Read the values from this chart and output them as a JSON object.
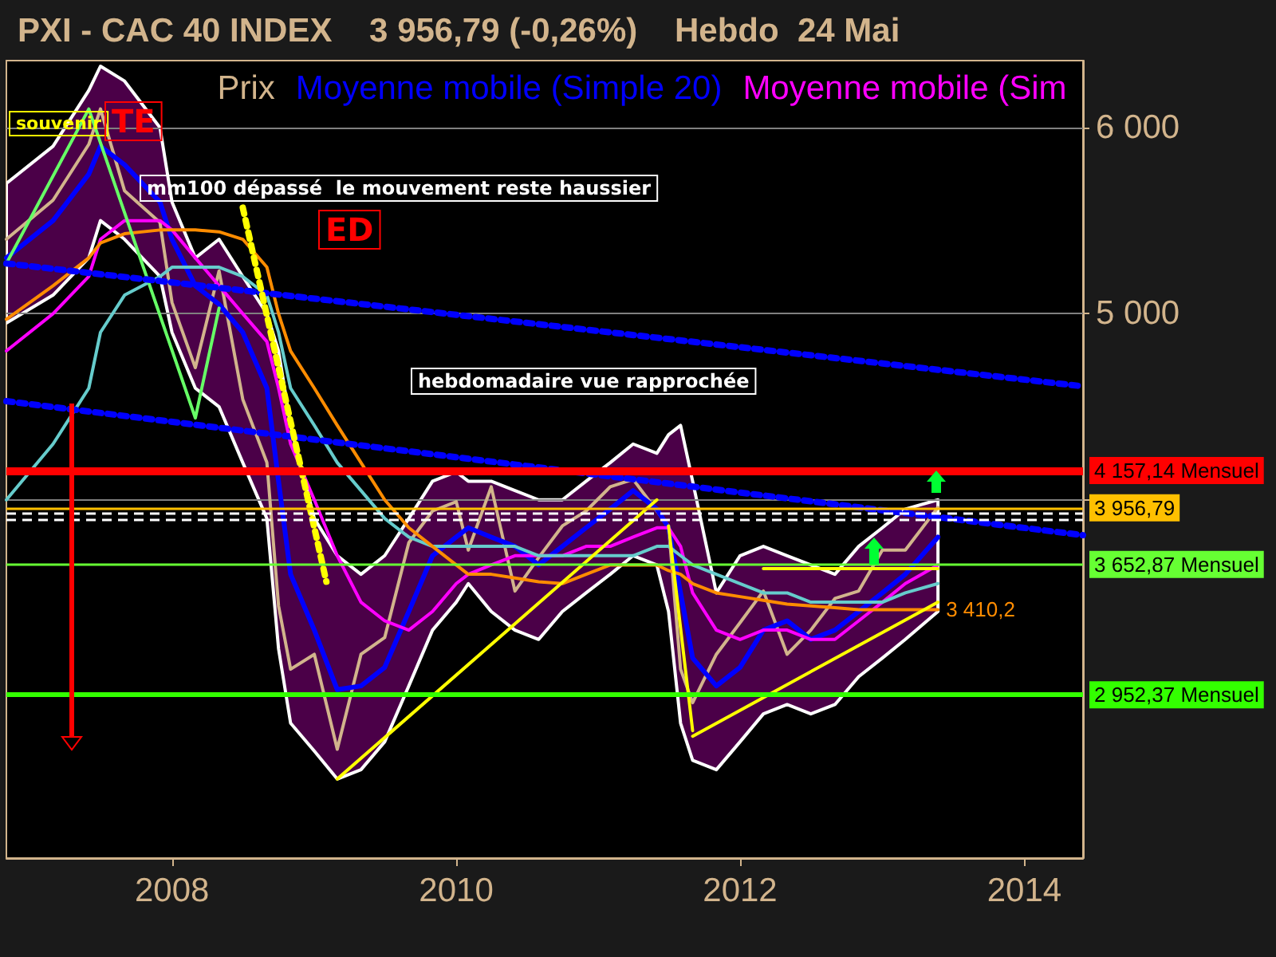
{
  "chart_data": {
    "type": "line",
    "title": "PXI - CAC 40 INDEX    3 956,79 (-0,26%)    Hebdo  24 Mai",
    "x": [
      "2006-11",
      "2007-03",
      "2007-06",
      "2007-07",
      "2007-09",
      "2007-12",
      "2008-01",
      "2008-03",
      "2008-05",
      "2008-07",
      "2008-09",
      "2008-10",
      "2008-11",
      "2009-01",
      "2009-03",
      "2009-05",
      "2009-07",
      "2009-09",
      "2009-11",
      "2010-01",
      "2010-02",
      "2010-04",
      "2010-06",
      "2010-08",
      "2010-10",
      "2010-12",
      "2011-02",
      "2011-04",
      "2011-06",
      "2011-07",
      "2011-08",
      "2011-09",
      "2011-11",
      "2012-01",
      "2012-03",
      "2012-05",
      "2012-07",
      "2012-09",
      "2012-11",
      "2013-01",
      "2013-03",
      "2013-05-24"
    ],
    "series": [
      {
        "name": "Prix",
        "color": "#d2b48c",
        "values": [
          5400,
          5610,
          5910,
          6100,
          5660,
          5490,
          5060,
          4710,
          5230,
          4540,
          4200,
          3430,
          3090,
          3170,
          2660,
          3170,
          3260,
          3770,
          3940,
          3990,
          3730,
          4070,
          3510,
          3690,
          3860,
          3940,
          4070,
          4110,
          3940,
          3860,
          3090,
          2910,
          3170,
          3340,
          3510,
          3170,
          3300,
          3470,
          3510,
          3730,
          3730,
          3960
        ]
      },
      {
        "name": "Moyenne mobile (Simple 20)",
        "color": "#0000ff",
        "values": [
          5300,
          5500,
          5750,
          5900,
          5800,
          5600,
          5400,
          5150,
          5050,
          4900,
          4600,
          4100,
          3600,
          3300,
          2980,
          3000,
          3100,
          3400,
          3700,
          3800,
          3850,
          3800,
          3750,
          3650,
          3750,
          3850,
          3950,
          4050,
          3950,
          3850,
          3500,
          3150,
          3000,
          3100,
          3300,
          3350,
          3250,
          3300,
          3400,
          3500,
          3600,
          3800
        ],
        "upper": [
          5700,
          5900,
          6200,
          6330,
          6250,
          6000,
          5600,
          5300,
          5400,
          5200,
          5000,
          4800,
          4400,
          3900,
          3700,
          3600,
          3700,
          3900,
          4100,
          4150,
          4100,
          4100,
          4050,
          4000,
          4000,
          4100,
          4200,
          4300,
          4250,
          4350,
          4400,
          4100,
          3500,
          3700,
          3750,
          3700,
          3650,
          3600,
          3750,
          3850,
          3950,
          4000
        ],
        "lower": [
          4950,
          5100,
          5300,
          5500,
          5400,
          5200,
          4900,
          4600,
          4500,
          4200,
          3900,
          3200,
          2800,
          2650,
          2500,
          2550,
          2700,
          3000,
          3300,
          3450,
          3550,
          3400,
          3300,
          3250,
          3400,
          3500,
          3600,
          3700,
          3650,
          3400,
          2800,
          2600,
          2550,
          2700,
          2850,
          2900,
          2850,
          2900,
          3050,
          3150,
          3250,
          3400
        ]
      },
      {
        "name": "Moyenne mobile (Sim",
        "color": "#ff00ff",
        "values": [
          4800,
          5000,
          5200,
          5400,
          5500,
          5500,
          5450,
          5300,
          5150,
          5000,
          4850,
          4600,
          4300,
          4000,
          3700,
          3450,
          3350,
          3300,
          3400,
          3550,
          3600,
          3650,
          3700,
          3700,
          3700,
          3750,
          3750,
          3800,
          3850,
          3850,
          3750,
          3500,
          3300,
          3250,
          3300,
          3300,
          3250,
          3250,
          3350,
          3450,
          3550,
          3650
        ]
      },
      {
        "color": "#66cccc",
        "values": [
          4000,
          4300,
          4600,
          4900,
          5100,
          5200,
          5250,
          5250,
          5250,
          5200,
          5100,
          4900,
          4600,
          4400,
          4200,
          4050,
          3900,
          3800,
          3750,
          3750,
          3750,
          3750,
          3750,
          3700,
          3700,
          3700,
          3700,
          3700,
          3750,
          3750,
          3700,
          3650,
          3600,
          3550,
          3500,
          3500,
          3450,
          3450,
          3450,
          3450,
          3500,
          3550
        ]
      },
      {
        "color": "#ff8c00",
        "values": [
          4970,
          5150,
          5300,
          5380,
          5430,
          5450,
          5450,
          5450,
          5440,
          5400,
          5250,
          5000,
          4800,
          4600,
          4400,
          4200,
          4000,
          3850,
          3750,
          3650,
          3600,
          3600,
          3580,
          3560,
          3550,
          3600,
          3650,
          3650,
          3650,
          3620,
          3600,
          3550,
          3500,
          3480,
          3460,
          3440,
          3430,
          3420,
          3410,
          3410,
          3410,
          3410.2
        ],
        "value_labels": [
          null,
          null,
          null,
          null,
          null,
          null,
          null,
          null,
          null,
          null,
          null,
          null,
          null,
          null,
          null,
          null,
          null,
          null,
          null,
          null,
          null,
          null,
          null,
          null,
          null,
          null,
          null,
          null,
          null,
          null,
          null,
          null,
          null,
          null,
          null,
          null,
          null,
          null,
          null,
          null,
          null,
          "3 410,2"
        ]
      },
      {
        "color": "#66ff66",
        "x": [
          "2006-11",
          "2007-06",
          "2008-03",
          "2008-05"
        ],
        "values": [
          5270,
          6100,
          4440,
          5030
        ]
      },
      {
        "color": "#0000ff",
        "x": [
          "2006-11",
          "2014-06"
        ],
        "values": [
          5270,
          4610
        ],
        "line_style": "dotted"
      },
      {
        "color": "#0000ff",
        "x": [
          "2006-11",
          "2014-06"
        ],
        "values": [
          4530,
          3810
        ],
        "line_style": "dotted"
      },
      {
        "color": "#ffff00",
        "x": [
          "2009-03",
          "2011-06"
        ],
        "values": [
          2500,
          4000
        ]
      },
      {
        "color": "#ffff00",
        "x": [
          "2011-09",
          "2013-05-24"
        ],
        "values": [
          2730,
          3450
        ]
      },
      {
        "color": "#ffff00",
        "x": [
          "2012-03",
          "2013-05-24"
        ],
        "values": [
          3630,
          3630
        ]
      },
      {
        "color": "#ffff00",
        "x": [
          "2011-07",
          "2011-09"
        ],
        "values": [
          3860,
          2760
        ]
      },
      {
        "color": "#ffff00",
        "x": [
          "2008-07",
          "2009-02"
        ],
        "values": [
          5570,
          3560
        ],
        "line_style": "dotted"
      }
    ],
    "xlim": [
      "2006-11",
      "2014-06"
    ],
    "xticks": [
      "2008",
      "2010",
      "2012",
      "2014"
    ],
    "ylim": [
      2075,
      6360
    ],
    "yticks": [
      {
        "value": 4000,
        "label": null
      },
      {
        "value": 5000,
        "label": "5 000"
      },
      {
        "value": 6000,
        "label": "6 000"
      }
    ],
    "ref_lines": [
      {
        "axis": "y",
        "value": 4157.14,
        "label": "4 157,14 Mensuel",
        "color": "#ff0000"
      },
      {
        "axis": "y",
        "value": 3956.79,
        "label": "3 956,79",
        "color": "#ffc000"
      },
      {
        "axis": "y",
        "value": 3930,
        "color": "#ffffff",
        "line_style": "dashed"
      },
      {
        "axis": "y",
        "value": 3895,
        "color": "#ffffff",
        "line_style": "dashed"
      },
      {
        "axis": "y",
        "value": 3652.87,
        "label": "3 652,87 Mensuel",
        "color": "#66ff33"
      },
      {
        "axis": "y",
        "value": 2952.37,
        "label": "2 952,37 Mensuel",
        "color": "#33ff00"
      }
    ],
    "annotations": [
      "souvenir",
      "TE",
      "mm100 dépassé  le mouvement reste haussier",
      "ED",
      "hebdomadaire vue rapprochée"
    ],
    "grid": "y",
    "legend": "top",
    "marker": "none",
    "line_style": "solid"
  }
}
